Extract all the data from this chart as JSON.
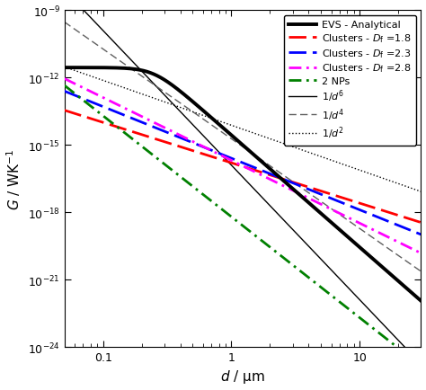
{
  "xlabel": "$d$ / μm",
  "ylabel": "$G$ / WK$^{-1}$",
  "xlim": [
    0.05,
    30
  ],
  "ylim": [
    1e-24,
    1e-09
  ],
  "evs": {
    "label": "EVS - Analytical",
    "color": "#000000",
    "lw": 2.8,
    "G_near": 2.8e-12,
    "d_trans": 0.25,
    "power_trans": 5.0
  },
  "clusters": [
    {
      "label": "Clusters - $D_{\\mathrm{f}}$ =1.8",
      "color": "#ff0000",
      "lw": 2.0,
      "ls": "dashed",
      "G_at_d0": 3.5e-14,
      "d0": 0.05,
      "slope": 1.8
    },
    {
      "label": "Clusters - $D_{\\mathrm{f}}$ =2.3",
      "color": "#0000ff",
      "lw": 2.0,
      "ls": "dashed",
      "G_at_d0": 2.5e-13,
      "d0": 0.05,
      "slope": 2.3
    },
    {
      "label": "Clusters - $D_{\\mathrm{f}}$ =2.8",
      "color": "#ff00ff",
      "lw": 2.0,
      "ls": "dashdot",
      "G_at_d0": 9e-13,
      "d0": 0.05,
      "slope": 2.8
    },
    {
      "label": "2 NPs",
      "color": "#008000",
      "lw": 2.0,
      "ls": "dashdot",
      "G_at_d0": 4.5e-13,
      "d0": 0.05,
      "slope": 4.5
    }
  ],
  "powerlines": [
    {
      "label": "$1/d^{6}$",
      "color": "#000000",
      "lw": 1.0,
      "ls": "solid",
      "G_at_d0": 8e-09,
      "d0": 0.05,
      "slope": 6
    },
    {
      "label": "$1/d^{4}$",
      "color": "#606060",
      "lw": 1.0,
      "ls": "dashed",
      "G_at_d0": 3e-10,
      "d0": 0.05,
      "slope": 4
    },
    {
      "label": "$1/d^{2}$",
      "color": "#000000",
      "lw": 1.0,
      "ls": "dotted",
      "G_at_d0": 3e-12,
      "d0": 0.05,
      "slope": 2
    }
  ],
  "legend_fontsize": 8.0,
  "tick_labelsize": 9
}
